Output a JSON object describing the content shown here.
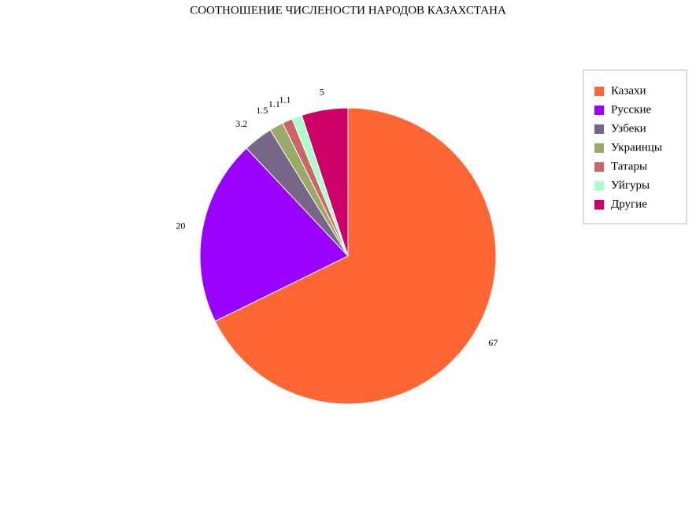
{
  "chart_data": {
    "type": "pie",
    "title": "СООТНОШЕНИЕ ЧИСЛЕНОСТИ НАРОДОВ КАЗАХСТАНА",
    "categories": [
      "Казахи",
      "Русские",
      "Узбеки",
      "Украинцы",
      "Татары",
      "Уйгуры",
      "Другие"
    ],
    "values": [
      67,
      20,
      3.2,
      1.5,
      1.1,
      1.1,
      5
    ],
    "colors": [
      "#ff6633",
      "#9900ff",
      "#776688",
      "#99aa66",
      "#cc6666",
      "#aaffcc",
      "#cc0066"
    ],
    "legend": "top-right"
  }
}
